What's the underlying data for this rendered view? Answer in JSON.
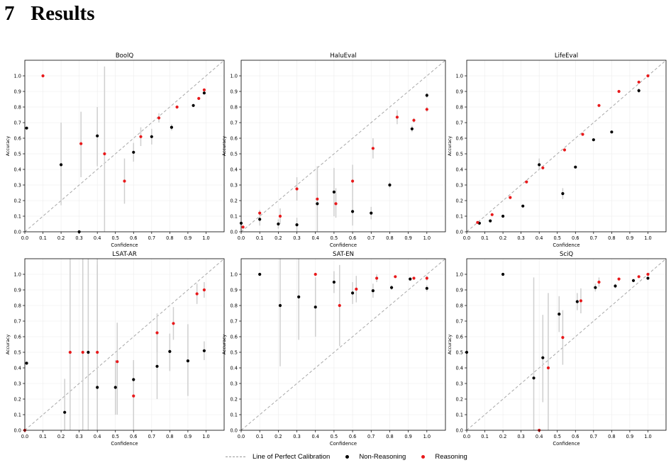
{
  "section": {
    "number": "7",
    "title": "Results"
  },
  "colors": {
    "non_reasoning": "#000000",
    "reasoning": "#e8191b",
    "error_bar": "#cfcfcf",
    "diagonal": "#a8a8a8",
    "grid": "#ececec"
  },
  "legend": {
    "diagonal": "Line of Perfect Calibration",
    "non_reasoning": "Non-Reasoning",
    "reasoning": "Reasoning"
  },
  "chart_data": [
    {
      "type": "scatter",
      "title": "BoolQ",
      "xlabel": "Confidence",
      "ylabel": "Accuracy",
      "xlim": [
        0,
        1.1
      ],
      "ylim": [
        0,
        1.1
      ],
      "grid": true,
      "series": [
        {
          "name": "Non-Reasoning",
          "points": [
            {
              "x": 0.01,
              "y": 0.665,
              "lo": null,
              "hi": null
            },
            {
              "x": 0.2,
              "y": 0.43,
              "lo": 0.17,
              "hi": 0.7
            },
            {
              "x": 0.3,
              "y": 0.0,
              "lo": 0.0,
              "hi": 0.0
            },
            {
              "x": 0.4,
              "y": 0.615,
              "lo": 0.42,
              "hi": 0.8
            },
            {
              "x": 0.6,
              "y": 0.51,
              "lo": 0.45,
              "hi": 0.57
            },
            {
              "x": 0.7,
              "y": 0.61,
              "lo": 0.56,
              "hi": 0.66
            },
            {
              "x": 0.81,
              "y": 0.67,
              "lo": 0.65,
              "hi": 0.69
            },
            {
              "x": 0.93,
              "y": 0.81,
              "lo": 0.8,
              "hi": 0.82
            },
            {
              "x": 0.99,
              "y": 0.89,
              "lo": 0.88,
              "hi": 0.9
            }
          ]
        },
        {
          "name": "Reasoning",
          "points": [
            {
              "x": 0.1,
              "y": 1.0,
              "lo": null,
              "hi": null
            },
            {
              "x": 0.31,
              "y": 0.565,
              "lo": 0.35,
              "hi": 0.77
            },
            {
              "x": 0.44,
              "y": 0.5,
              "lo": 0.0,
              "hi": 1.06
            },
            {
              "x": 0.55,
              "y": 0.325,
              "lo": 0.18,
              "hi": 0.47
            },
            {
              "x": 0.64,
              "y": 0.61,
              "lo": 0.55,
              "hi": 0.67
            },
            {
              "x": 0.74,
              "y": 0.73,
              "lo": 0.7,
              "hi": 0.76
            },
            {
              "x": 0.84,
              "y": 0.8,
              "lo": 0.79,
              "hi": 0.81
            },
            {
              "x": 0.96,
              "y": 0.855,
              "lo": 0.85,
              "hi": 0.86
            },
            {
              "x": 0.99,
              "y": 0.91,
              "lo": 0.9,
              "hi": 0.92
            }
          ]
        }
      ]
    },
    {
      "type": "scatter",
      "title": "HaluEval",
      "xlabel": "Confidence",
      "ylabel": "Accuracy",
      "xlim": [
        0,
        1.1
      ],
      "ylim": [
        0,
        1.1
      ],
      "grid": true,
      "series": [
        {
          "name": "Non-Reasoning",
          "points": [
            {
              "x": 0.0,
              "y": 0.055,
              "lo": null,
              "hi": null
            },
            {
              "x": 0.1,
              "y": 0.08,
              "lo": 0.04,
              "hi": 0.12
            },
            {
              "x": 0.2,
              "y": 0.05,
              "lo": 0.02,
              "hi": 0.08
            },
            {
              "x": 0.3,
              "y": 0.045,
              "lo": 0.0,
              "hi": 0.09
            },
            {
              "x": 0.41,
              "y": 0.18,
              "lo": 0.0,
              "hi": 0.41
            },
            {
              "x": 0.5,
              "y": 0.255,
              "lo": 0.1,
              "hi": 0.41
            },
            {
              "x": 0.6,
              "y": 0.13,
              "lo": 0.04,
              "hi": 0.22
            },
            {
              "x": 0.7,
              "y": 0.12,
              "lo": 0.08,
              "hi": 0.16
            },
            {
              "x": 0.8,
              "y": 0.3,
              "lo": 0.28,
              "hi": 0.32
            },
            {
              "x": 0.92,
              "y": 0.66,
              "lo": 0.64,
              "hi": 0.68
            },
            {
              "x": 1.0,
              "y": 0.875,
              "lo": 0.86,
              "hi": 0.89
            }
          ]
        },
        {
          "name": "Reasoning",
          "points": [
            {
              "x": 0.01,
              "y": 0.03,
              "lo": null,
              "hi": null
            },
            {
              "x": 0.1,
              "y": 0.12,
              "lo": 0.1,
              "hi": 0.14
            },
            {
              "x": 0.21,
              "y": 0.1,
              "lo": 0.05,
              "hi": 0.15
            },
            {
              "x": 0.3,
              "y": 0.275,
              "lo": 0.2,
              "hi": 0.35
            },
            {
              "x": 0.41,
              "y": 0.21,
              "lo": 0.0,
              "hi": 0.42
            },
            {
              "x": 0.51,
              "y": 0.18,
              "lo": 0.09,
              "hi": 0.28
            },
            {
              "x": 0.6,
              "y": 0.325,
              "lo": 0.22,
              "hi": 0.43
            },
            {
              "x": 0.71,
              "y": 0.535,
              "lo": 0.47,
              "hi": 0.6
            },
            {
              "x": 0.84,
              "y": 0.735,
              "lo": 0.69,
              "hi": 0.78
            },
            {
              "x": 0.93,
              "y": 0.715,
              "lo": 0.7,
              "hi": 0.73
            },
            {
              "x": 1.0,
              "y": 0.785,
              "lo": 0.77,
              "hi": 0.8
            }
          ]
        }
      ]
    },
    {
      "type": "scatter",
      "title": "LifeEval",
      "xlabel": "Confidence",
      "ylabel": "Accuracy",
      "xlim": [
        0,
        1.1
      ],
      "ylim": [
        0,
        1.1
      ],
      "grid": true,
      "series": [
        {
          "name": "Non-Reasoning",
          "points": [
            {
              "x": 0.07,
              "y": 0.055,
              "lo": null,
              "hi": null
            },
            {
              "x": 0.13,
              "y": 0.07,
              "lo": null,
              "hi": null
            },
            {
              "x": 0.2,
              "y": 0.1,
              "lo": null,
              "hi": null
            },
            {
              "x": 0.31,
              "y": 0.165,
              "lo": null,
              "hi": null
            },
            {
              "x": 0.4,
              "y": 0.43,
              "lo": 0.4,
              "hi": 0.47
            },
            {
              "x": 0.53,
              "y": 0.245,
              "lo": 0.21,
              "hi": 0.28
            },
            {
              "x": 0.6,
              "y": 0.415,
              "lo": null,
              "hi": null
            },
            {
              "x": 0.7,
              "y": 0.59,
              "lo": null,
              "hi": null
            },
            {
              "x": 0.8,
              "y": 0.64,
              "lo": null,
              "hi": null
            },
            {
              "x": 0.95,
              "y": 0.905,
              "lo": 0.89,
              "hi": 0.92
            }
          ]
        },
        {
          "name": "Reasoning",
          "points": [
            {
              "x": 0.06,
              "y": 0.06,
              "lo": null,
              "hi": null
            },
            {
              "x": 0.14,
              "y": 0.11,
              "lo": null,
              "hi": null
            },
            {
              "x": 0.24,
              "y": 0.22,
              "lo": null,
              "hi": null
            },
            {
              "x": 0.33,
              "y": 0.32,
              "lo": null,
              "hi": null
            },
            {
              "x": 0.42,
              "y": 0.41,
              "lo": null,
              "hi": null
            },
            {
              "x": 0.54,
              "y": 0.525,
              "lo": null,
              "hi": null
            },
            {
              "x": 0.64,
              "y": 0.625,
              "lo": null,
              "hi": null
            },
            {
              "x": 0.73,
              "y": 0.81,
              "lo": null,
              "hi": null
            },
            {
              "x": 0.84,
              "y": 0.9,
              "lo": null,
              "hi": null
            },
            {
              "x": 0.95,
              "y": 0.96,
              "lo": null,
              "hi": null
            },
            {
              "x": 1.0,
              "y": 1.0,
              "lo": null,
              "hi": null
            }
          ]
        }
      ]
    },
    {
      "type": "scatter",
      "title": "LSAT-AR",
      "xlabel": "Confidence",
      "ylabel": "Accuracy",
      "xlim": [
        0,
        1.1
      ],
      "ylim": [
        0,
        1.1
      ],
      "grid": true,
      "series": [
        {
          "name": "Non-Reasoning",
          "points": [
            {
              "x": 0.01,
              "y": 0.43,
              "lo": null,
              "hi": null
            },
            {
              "x": 0.22,
              "y": 0.115,
              "lo": 0.0,
              "hi": 0.33
            },
            {
              "x": 0.35,
              "y": 0.5,
              "lo": 0.0,
              "hi": 1.1
            },
            {
              "x": 0.4,
              "y": 0.275,
              "lo": 0.0,
              "hi": 1.06
            },
            {
              "x": 0.5,
              "y": 0.275,
              "lo": 0.1,
              "hi": 0.45
            },
            {
              "x": 0.6,
              "y": 0.325,
              "lo": 0.2,
              "hi": 0.45
            },
            {
              "x": 0.73,
              "y": 0.41,
              "lo": 0.2,
              "hi": 0.62
            },
            {
              "x": 0.8,
              "y": 0.505,
              "lo": 0.38,
              "hi": 0.62
            },
            {
              "x": 0.9,
              "y": 0.445,
              "lo": 0.22,
              "hi": 0.68
            },
            {
              "x": 0.99,
              "y": 0.51,
              "lo": 0.45,
              "hi": 0.57
            }
          ]
        },
        {
          "name": "Reasoning",
          "points": [
            {
              "x": 0.0,
              "y": 0.0,
              "lo": null,
              "hi": null
            },
            {
              "x": 0.25,
              "y": 0.5,
              "lo": 0.0,
              "hi": 1.1
            },
            {
              "x": 0.32,
              "y": 0.5,
              "lo": 0.0,
              "hi": 1.1
            },
            {
              "x": 0.4,
              "y": 0.5,
              "lo": 0.0,
              "hi": 1.1
            },
            {
              "x": 0.51,
              "y": 0.44,
              "lo": 0.1,
              "hi": 0.69
            },
            {
              "x": 0.6,
              "y": 0.22,
              "lo": 0.0,
              "hi": 0.44
            },
            {
              "x": 0.73,
              "y": 0.625,
              "lo": 0.5,
              "hi": 0.75
            },
            {
              "x": 0.82,
              "y": 0.685,
              "lo": 0.58,
              "hi": 0.79
            },
            {
              "x": 0.95,
              "y": 0.875,
              "lo": 0.81,
              "hi": 0.94
            },
            {
              "x": 0.99,
              "y": 0.9,
              "lo": 0.85,
              "hi": 0.95
            }
          ]
        }
      ]
    },
    {
      "type": "scatter",
      "title": "SAT-EN",
      "xlabel": "Confidence",
      "ylabel": "Accuracy",
      "xlim": [
        0,
        1.1
      ],
      "ylim": [
        0,
        1.1
      ],
      "grid": true,
      "series": [
        {
          "name": "Non-Reasoning",
          "points": [
            {
              "x": 0.1,
              "y": 1.0,
              "lo": null,
              "hi": null
            },
            {
              "x": 0.21,
              "y": 0.8,
              "lo": 0.41,
              "hi": 1.1
            },
            {
              "x": 0.31,
              "y": 0.855,
              "lo": 0.58,
              "hi": 1.1
            },
            {
              "x": 0.4,
              "y": 0.79,
              "lo": 0.6,
              "hi": 0.98
            },
            {
              "x": 0.5,
              "y": 0.95,
              "lo": 0.88,
              "hi": 1.02
            },
            {
              "x": 0.6,
              "y": 0.88,
              "lo": 0.81,
              "hi": 0.95
            },
            {
              "x": 0.71,
              "y": 0.895,
              "lo": 0.85,
              "hi": 0.94
            },
            {
              "x": 0.81,
              "y": 0.915,
              "lo": 0.9,
              "hi": 0.93
            },
            {
              "x": 0.91,
              "y": 0.97,
              "lo": 0.96,
              "hi": 0.98
            },
            {
              "x": 1.0,
              "y": 0.91,
              "lo": 0.89,
              "hi": 0.93
            }
          ]
        },
        {
          "name": "Reasoning",
          "points": [
            {
              "x": 0.4,
              "y": 1.0,
              "lo": null,
              "hi": null
            },
            {
              "x": 0.53,
              "y": 0.8,
              "lo": 0.54,
              "hi": 1.06
            },
            {
              "x": 0.62,
              "y": 0.905,
              "lo": 0.82,
              "hi": 0.99
            },
            {
              "x": 0.73,
              "y": 0.975,
              "lo": 0.95,
              "hi": 1.0
            },
            {
              "x": 0.83,
              "y": 0.985,
              "lo": null,
              "hi": null
            },
            {
              "x": 0.93,
              "y": 0.975,
              "lo": null,
              "hi": null
            },
            {
              "x": 1.0,
              "y": 0.975,
              "lo": 0.96,
              "hi": 0.99
            }
          ]
        }
      ]
    },
    {
      "type": "scatter",
      "title": "SciQ",
      "xlabel": "Confidence",
      "ylabel": "Accuracy",
      "xlim": [
        0,
        1.1
      ],
      "ylim": [
        0,
        1.1
      ],
      "grid": true,
      "series": [
        {
          "name": "Non-Reasoning",
          "points": [
            {
              "x": 0.0,
              "y": 0.5,
              "lo": null,
              "hi": null
            },
            {
              "x": 0.2,
              "y": 1.0,
              "lo": null,
              "hi": null
            },
            {
              "x": 0.37,
              "y": 0.335,
              "lo": 0.0,
              "hi": 0.98
            },
            {
              "x": 0.42,
              "y": 0.465,
              "lo": 0.18,
              "hi": 0.74
            },
            {
              "x": 0.51,
              "y": 0.745,
              "lo": 0.63,
              "hi": 0.86
            },
            {
              "x": 0.61,
              "y": 0.825,
              "lo": 0.77,
              "hi": 0.88
            },
            {
              "x": 0.71,
              "y": 0.915,
              "lo": 0.89,
              "hi": 0.94
            },
            {
              "x": 0.82,
              "y": 0.925,
              "lo": 0.91,
              "hi": 0.94
            },
            {
              "x": 0.92,
              "y": 0.96,
              "lo": 0.95,
              "hi": 0.97
            },
            {
              "x": 1.0,
              "y": 0.975,
              "lo": 0.97,
              "hi": 0.98
            }
          ]
        },
        {
          "name": "Reasoning",
          "points": [
            {
              "x": 0.4,
              "y": 0.0,
              "lo": null,
              "hi": null
            },
            {
              "x": 0.45,
              "y": 0.4,
              "lo": 0.0,
              "hi": 0.88
            },
            {
              "x": 0.53,
              "y": 0.595,
              "lo": 0.42,
              "hi": 0.77
            },
            {
              "x": 0.63,
              "y": 0.83,
              "lo": 0.75,
              "hi": 0.91
            },
            {
              "x": 0.73,
              "y": 0.95,
              "lo": 0.92,
              "hi": 0.98
            },
            {
              "x": 0.84,
              "y": 0.97,
              "lo": null,
              "hi": null
            },
            {
              "x": 0.95,
              "y": 0.985,
              "lo": null,
              "hi": null
            },
            {
              "x": 1.0,
              "y": 1.0,
              "lo": null,
              "hi": null
            }
          ]
        }
      ]
    }
  ]
}
